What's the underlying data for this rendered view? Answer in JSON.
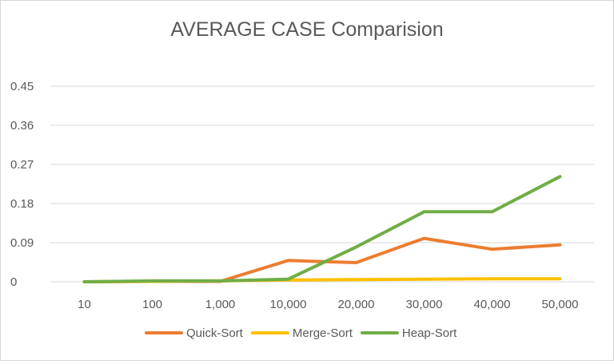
{
  "chart_data": {
    "type": "line",
    "title": "AVERAGE CASE Comparision",
    "xlabel": "",
    "ylabel": "",
    "categories": [
      "10",
      "100",
      "1,000",
      "10,000",
      "20,000",
      "30,000",
      "40,000",
      "50,000"
    ],
    "y_ticks": [
      "0",
      "0.09",
      "0.18",
      "0.27",
      "0.36",
      "0.45"
    ],
    "ylim": [
      0,
      0.45
    ],
    "grid": true,
    "legend_position": "bottom",
    "series": [
      {
        "name": "Quick-Sort",
        "color": "#ed7d31",
        "values": [
          0,
          0.001,
          0.001,
          0.049,
          0.044,
          0.1,
          0.075,
          0.085
        ]
      },
      {
        "name": "Merge-Sort",
        "color": "#ffc000",
        "values": [
          0,
          0.001,
          0.002,
          0.004,
          0.005,
          0.006,
          0.007,
          0.007
        ]
      },
      {
        "name": "Heap-Sort",
        "color": "#70ad47",
        "values": [
          0,
          0.002,
          0.002,
          0.006,
          0.08,
          0.161,
          0.161,
          0.242
        ]
      }
    ]
  }
}
